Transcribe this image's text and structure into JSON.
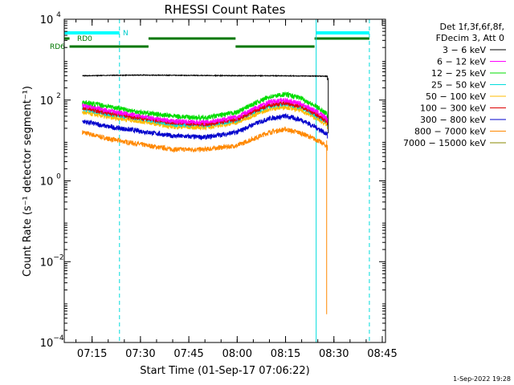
{
  "chart_data": {
    "type": "line",
    "title": "RHESSI Count Rates",
    "xlabel": "Start Time (01-Sep-17 07:06:22)",
    "ylabel": "Count Rate (s⁻¹ detector segment⁻¹)",
    "y_scale": "log",
    "ylim": [
      0.0001,
      10000
    ],
    "xlim": [
      "07:06:22",
      "08:46:00"
    ],
    "x_ticks": [
      "07:15",
      "07:30",
      "07:45",
      "08:00",
      "08:15",
      "08:30",
      "08:45"
    ],
    "y_ticks": [
      {
        "value": 0.0001,
        "base": "10",
        "exp": "−4"
      },
      {
        "value": 0.01,
        "base": "10",
        "exp": "−2"
      },
      {
        "value": 1,
        "base": "10",
        "exp": "0"
      },
      {
        "value": 100,
        "base": "10",
        "exp": "2"
      },
      {
        "value": 10000,
        "base": "10",
        "exp": "4"
      }
    ],
    "legend_header": [
      "Det 1f,3f,6f,8f,",
      "FDecim 3, Att 0"
    ],
    "legend_position": "right",
    "series": [
      {
        "name": "3 − 6 keV",
        "color": "#000000",
        "x": [
          "07:12:00",
          "07:22:00",
          "07:30:00",
          "07:40:00",
          "07:50:00",
          "08:00:00",
          "08:10:00",
          "08:20:00",
          "08:28:00"
        ],
        "y": [
          400,
          410,
          415,
          410,
          405,
          400,
          400,
          395,
          390
        ]
      },
      {
        "name": "6 − 12 keV",
        "color": "#ff00ff",
        "x": [
          "07:12:00",
          "07:20:00",
          "07:30:00",
          "07:40:00",
          "07:50:00",
          "08:00:00",
          "08:05:00",
          "08:10:00",
          "08:15:00",
          "08:20:00",
          "08:25:00",
          "08:28:00"
        ],
        "y": [
          75,
          55,
          40,
          30,
          28,
          38,
          60,
          90,
          100,
          80,
          50,
          35
        ]
      },
      {
        "name": "12 − 25 keV",
        "color": "#00dd00",
        "x": [
          "07:12:00",
          "07:20:00",
          "07:30:00",
          "07:40:00",
          "07:50:00",
          "08:00:00",
          "08:05:00",
          "08:10:00",
          "08:15:00",
          "08:20:00",
          "08:25:00",
          "08:28:00"
        ],
        "y": [
          90,
          70,
          50,
          40,
          36,
          50,
          80,
          120,
          140,
          110,
          65,
          45
        ]
      },
      {
        "name": "25 − 50 keV",
        "color": "#00dddd",
        "x": [
          "07:12:00",
          "07:20:00",
          "07:30:00",
          "07:40:00",
          "07:50:00",
          "08:00:00",
          "08:05:00",
          "08:10:00",
          "08:15:00",
          "08:20:00",
          "08:25:00",
          "08:28:00"
        ],
        "y": [
          60,
          45,
          35,
          25,
          24,
          32,
          50,
          70,
          80,
          65,
          40,
          28
        ]
      },
      {
        "name": "50 − 100 keV",
        "color": "#ffbb00",
        "x": [
          "07:12:00",
          "07:20:00",
          "07:30:00",
          "07:40:00",
          "07:50:00",
          "08:00:00",
          "08:05:00",
          "08:10:00",
          "08:15:00",
          "08:20:00",
          "08:25:00",
          "08:28:00"
        ],
        "y": [
          50,
          38,
          30,
          22,
          21,
          28,
          42,
          60,
          68,
          55,
          34,
          24
        ]
      },
      {
        "name": "100 − 300 keV",
        "color": "#dd0000",
        "x": [
          "07:12:00",
          "07:20:00",
          "07:30:00",
          "07:40:00",
          "07:50:00",
          "08:00:00",
          "08:05:00",
          "08:10:00",
          "08:15:00",
          "08:20:00",
          "08:25:00",
          "08:28:00"
        ],
        "y": [
          65,
          48,
          36,
          28,
          25,
          33,
          52,
          75,
          85,
          70,
          42,
          30
        ]
      },
      {
        "name": "300 − 800 keV",
        "color": "#0000cc",
        "x": [
          "07:12:00",
          "07:20:00",
          "07:30:00",
          "07:40:00",
          "07:50:00",
          "08:00:00",
          "08:05:00",
          "08:10:00",
          "08:15:00",
          "08:20:00",
          "08:25:00",
          "08:28:00"
        ],
        "y": [
          30,
          22,
          17,
          13,
          12,
          16,
          25,
          35,
          40,
          32,
          20,
          14
        ]
      },
      {
        "name": "800 − 7000 keV",
        "color": "#ff8800",
        "x": [
          "07:12:00",
          "07:20:00",
          "07:30:00",
          "07:40:00",
          "07:50:00",
          "08:00:00",
          "08:05:00",
          "08:10:00",
          "08:15:00",
          "08:20:00",
          "08:25:00",
          "08:28:00"
        ],
        "y": [
          16,
          11,
          8,
          6,
          6,
          7.5,
          11,
          16,
          19,
          15,
          10,
          7
        ]
      },
      {
        "name": "7000 − 15000 keV",
        "color": "#888800",
        "x": [],
        "y": []
      }
    ],
    "flag_bars": [
      {
        "label": "RD0",
        "color": "#007700",
        "segments": [
          [
            "07:06:22",
            "07:08:00"
          ],
          [
            "07:32:30",
            "07:59:30"
          ],
          [
            "08:24:00",
            "08:41:00"
          ]
        ]
      },
      {
        "label": "RD6",
        "color": "#007700",
        "segments": [
          [
            "07:08:00",
            "07:32:30"
          ],
          [
            "07:59:30",
            "08:24:00"
          ]
        ]
      },
      {
        "label": "N",
        "color": "#00ffff",
        "segments": [
          [
            "07:06:22",
            "07:23:30"
          ],
          [
            "08:24:30",
            "08:41:00"
          ]
        ]
      }
    ],
    "vlines_solid": [
      "07:06:22",
      "08:24:30"
    ],
    "vlines_dashed": [
      "07:23:30",
      "08:41:00"
    ],
    "drop_series": {
      "color": "#ff8800",
      "time": "08:28:00",
      "from": 10,
      "to": 0.0005
    }
  },
  "footer": {
    "date_stamp": "1-Sep-2022 19:28"
  }
}
